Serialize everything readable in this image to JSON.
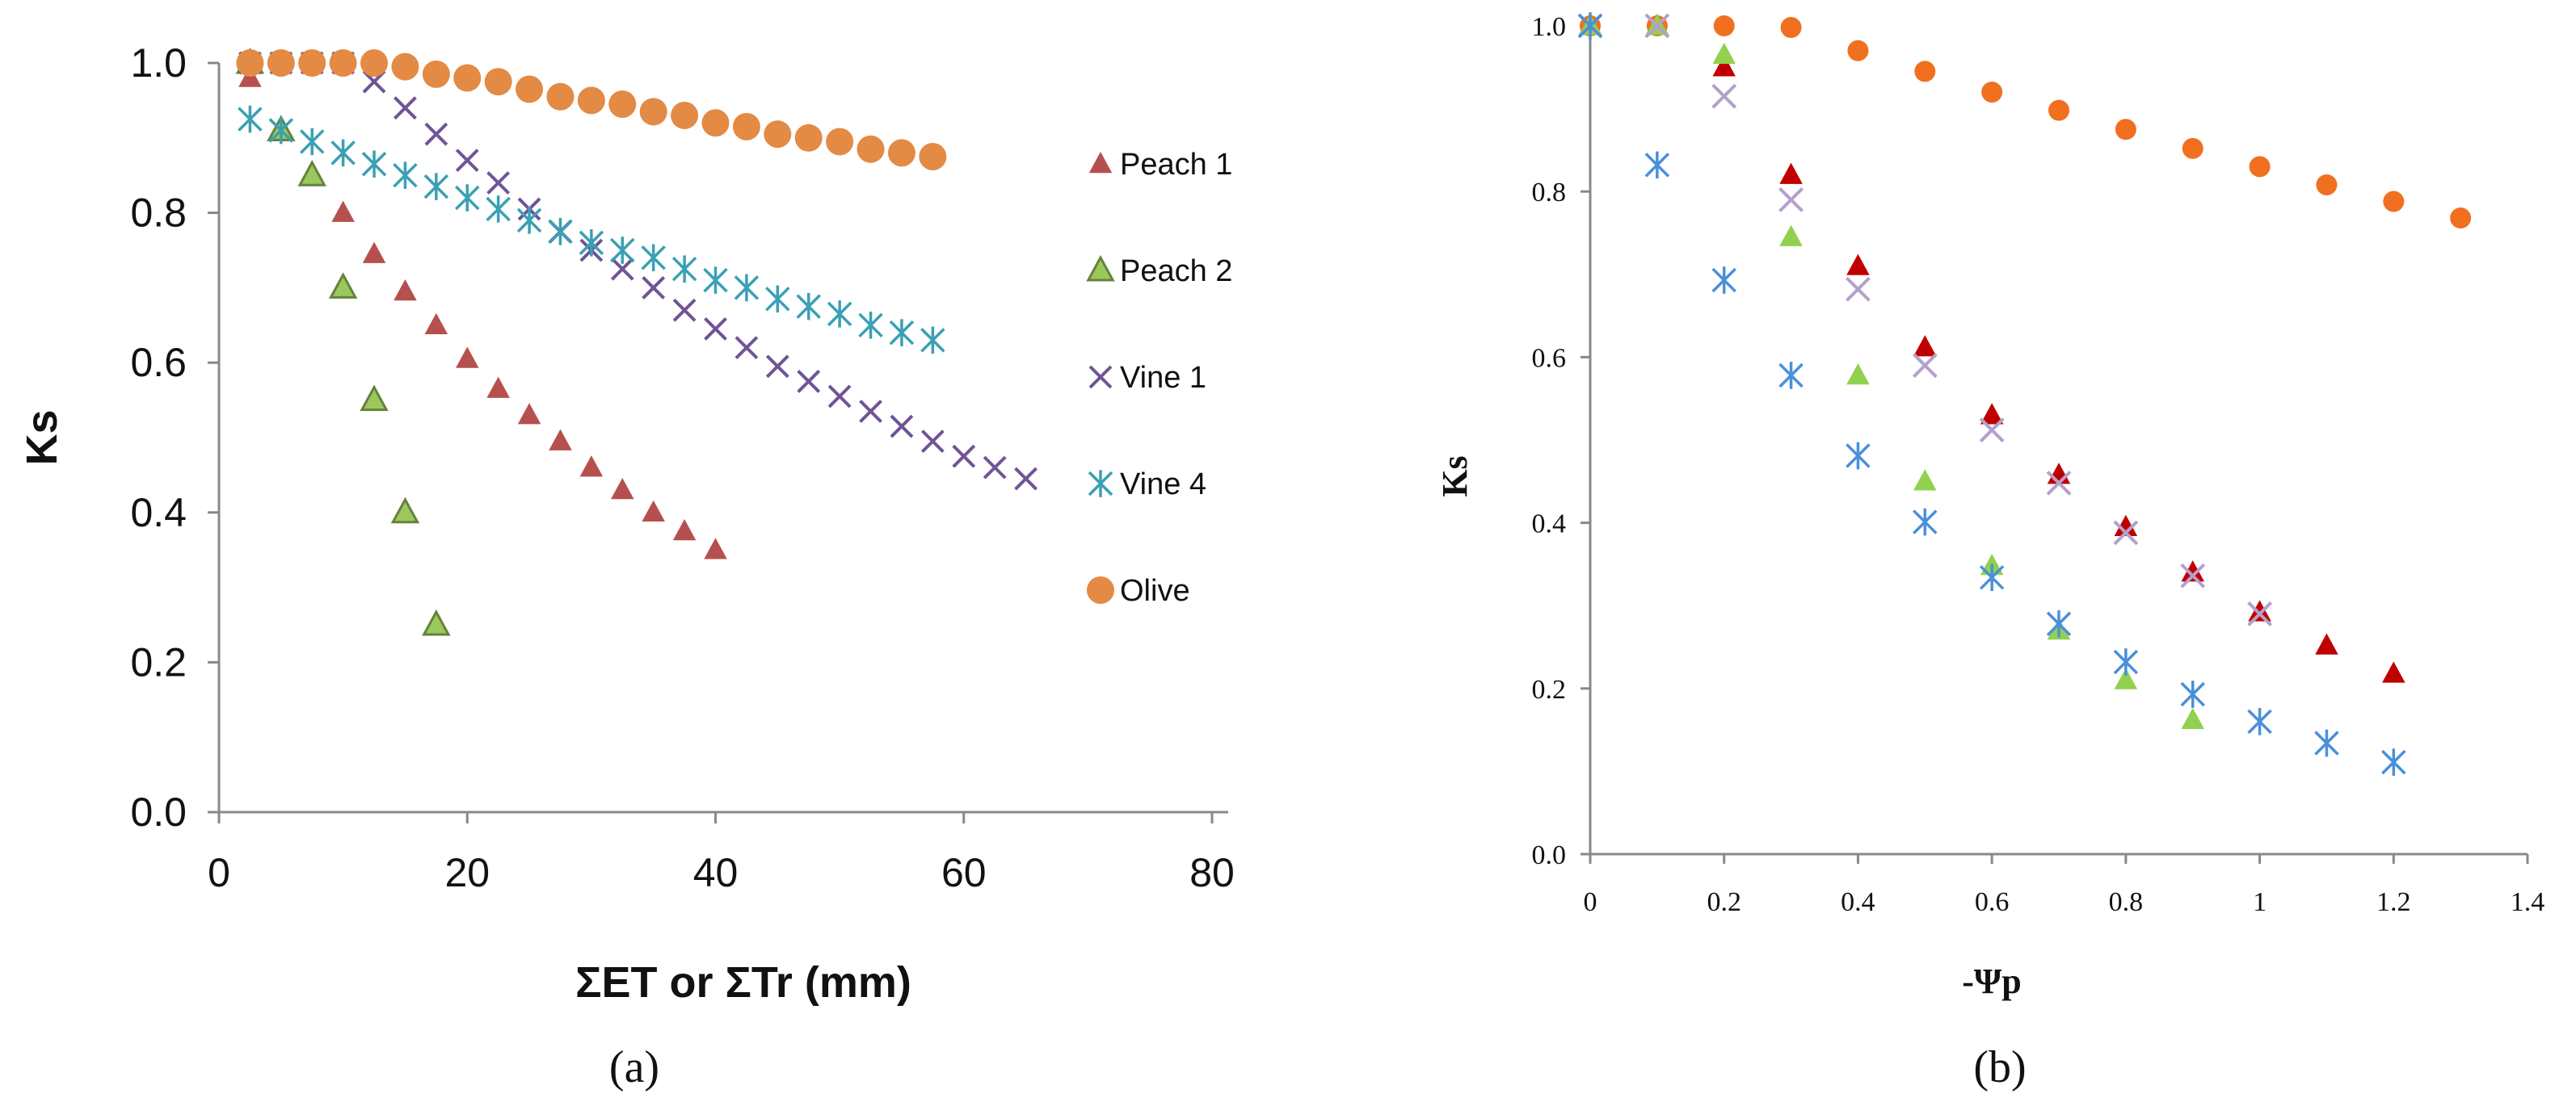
{
  "chart_data": [
    {
      "panel": "(a)",
      "type": "scatter",
      "xlabel": "ΣET or ΣTr (mm)",
      "ylabel": "Ks",
      "xlim": [
        0,
        80
      ],
      "ylim": [
        0,
        1.0
      ],
      "xticks": [
        0,
        20,
        40,
        60,
        80
      ],
      "yticks": [
        0.0,
        0.2,
        0.4,
        0.6,
        0.8,
        1.0
      ],
      "xtick_labels": [
        "0",
        "20",
        "40",
        "60",
        "80"
      ],
      "ytick_labels": [
        "0.0",
        "0.2",
        "0.4",
        "0.6",
        "0.8",
        "1.0"
      ],
      "legend_position": "right",
      "series": [
        {
          "name": "Peach 1",
          "marker": "triangle",
          "color": "#B5504E",
          "x": [
            2.5,
            5,
            7.5,
            10,
            12.5,
            15,
            17.5,
            20,
            22.5,
            25,
            27.5,
            30,
            32.5,
            35,
            37.5,
            40
          ],
          "y": [
            0.98,
            0.91,
            0.85,
            0.8,
            0.745,
            0.695,
            0.65,
            0.605,
            0.565,
            0.53,
            0.495,
            0.46,
            0.43,
            0.4,
            0.375,
            0.35
          ]
        },
        {
          "name": "Peach 2",
          "marker": "triangle-outlined",
          "color": "#9BC85C",
          "x": [
            2.5,
            5,
            7.5,
            10,
            12.5,
            15,
            17.5
          ],
          "y": [
            1.0,
            0.91,
            0.85,
            0.7,
            0.55,
            0.4,
            0.25
          ]
        },
        {
          "name": "Vine 1",
          "marker": "x",
          "color": "#6F5496",
          "x": [
            2.5,
            5,
            7.5,
            10,
            12.5,
            15,
            17.5,
            20,
            22.5,
            25,
            27.5,
            30,
            32.5,
            35,
            37.5,
            40,
            42.5,
            45,
            47.5,
            50,
            52.5,
            55,
            57.5,
            60,
            62.5,
            65
          ],
          "y": [
            1.0,
            1.0,
            1.0,
            1.0,
            0.975,
            0.94,
            0.905,
            0.87,
            0.84,
            0.805,
            0.775,
            0.75,
            0.725,
            0.7,
            0.67,
            0.645,
            0.62,
            0.595,
            0.575,
            0.555,
            0.535,
            0.515,
            0.495,
            0.475,
            0.46,
            0.445
          ]
        },
        {
          "name": "Vine 4",
          "marker": "asterisk",
          "color": "#3AA0B4",
          "x": [
            2.5,
            5,
            7.5,
            10,
            12.5,
            15,
            17.5,
            20,
            22.5,
            25,
            27.5,
            30,
            32.5,
            35,
            37.5,
            40,
            42.5,
            45,
            47.5,
            50,
            52.5,
            55,
            57.5
          ],
          "y": [
            0.925,
            0.91,
            0.895,
            0.88,
            0.865,
            0.85,
            0.835,
            0.82,
            0.805,
            0.79,
            0.775,
            0.76,
            0.75,
            0.74,
            0.725,
            0.71,
            0.7,
            0.685,
            0.675,
            0.665,
            0.65,
            0.64,
            0.63
          ]
        },
        {
          "name": "Olive",
          "marker": "circle",
          "color": "#E38A45",
          "x": [
            2.5,
            5,
            7.5,
            10,
            12.5,
            15,
            17.5,
            20,
            22.5,
            25,
            27.5,
            30,
            32.5,
            35,
            37.5,
            40,
            42.5,
            45,
            47.5,
            50,
            52.5,
            55,
            57.5
          ],
          "y": [
            1.0,
            1.0,
            1.0,
            1.0,
            1.0,
            0.995,
            0.985,
            0.98,
            0.975,
            0.965,
            0.955,
            0.95,
            0.945,
            0.935,
            0.93,
            0.92,
            0.915,
            0.905,
            0.9,
            0.895,
            0.885,
            0.88,
            0.875
          ]
        }
      ]
    },
    {
      "panel": "(b)",
      "type": "scatter",
      "xlabel": "-Ψp",
      "ylabel": "Ks",
      "xlim": [
        0,
        1.4
      ],
      "ylim": [
        0,
        1.0
      ],
      "xticks": [
        0,
        0.2,
        0.4,
        0.6,
        0.8,
        1.0,
        1.2,
        1.4
      ],
      "yticks": [
        0.0,
        0.2,
        0.4,
        0.6,
        0.8,
        1.0
      ],
      "xtick_labels": [
        "0",
        "0.2",
        "0.4",
        "0.6",
        "0.8",
        "1",
        "1.2",
        "1.4"
      ],
      "ytick_labels": [
        "0.0",
        "0.2",
        "0.4",
        "0.6",
        "0.8",
        "1.0"
      ],
      "series": [
        {
          "name": "olive",
          "marker": "circle",
          "color": "#F07020",
          "x": [
            0,
            0.1,
            0.2,
            0.3,
            0.4,
            0.5,
            0.6,
            0.7,
            0.8,
            0.9,
            1.0,
            1.1,
            1.2,
            1.3
          ],
          "y": [
            1.0,
            1.0,
            1.0,
            0.998,
            0.97,
            0.945,
            0.92,
            0.898,
            0.875,
            0.852,
            0.83,
            0.808,
            0.788,
            0.768
          ]
        },
        {
          "name": "peach 1",
          "marker": "triangle",
          "color": "#C00000",
          "x": [
            0,
            0.1,
            0.2,
            0.3,
            0.4,
            0.5,
            0.6,
            0.7,
            0.8,
            0.9,
            1.0,
            1.1,
            1.2
          ],
          "y": [
            1.0,
            1.0,
            0.95,
            0.82,
            0.71,
            0.612,
            0.53,
            0.458,
            0.395,
            0.34,
            0.292,
            0.252,
            0.218
          ]
        },
        {
          "name": "peach 2",
          "marker": "triangle",
          "color": "#92D050",
          "x": [
            0,
            0.1,
            0.2,
            0.3,
            0.4,
            0.5,
            0.6,
            0.7,
            0.8,
            0.9
          ],
          "y": [
            1.0,
            1.0,
            0.965,
            0.745,
            0.578,
            0.45,
            0.348,
            0.27,
            0.21,
            0.162
          ]
        },
        {
          "name": "vine 1",
          "marker": "x",
          "color": "#B4A0CC",
          "x": [
            0,
            0.1,
            0.2,
            0.3,
            0.4,
            0.5,
            0.6,
            0.7,
            0.8,
            0.9,
            1.0
          ],
          "y": [
            1.0,
            1.0,
            0.915,
            0.79,
            0.682,
            0.59,
            0.512,
            0.448,
            0.388,
            0.336,
            0.29
          ]
        },
        {
          "name": "vine 4",
          "marker": "asterisk",
          "color": "#4A90D9",
          "x": [
            0,
            0.1,
            0.2,
            0.3,
            0.4,
            0.5,
            0.6,
            0.7,
            0.8,
            0.9,
            1.0,
            1.1,
            1.2
          ],
          "y": [
            1.0,
            0.832,
            0.693,
            0.578,
            0.481,
            0.401,
            0.334,
            0.278,
            0.232,
            0.193,
            0.16,
            0.134,
            0.111
          ]
        }
      ]
    }
  ]
}
